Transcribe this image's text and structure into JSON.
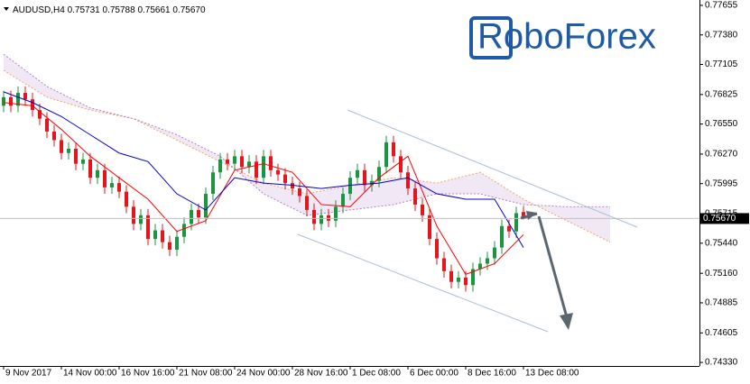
{
  "chart_data": {
    "type": "candlestick",
    "header": {
      "symbol": "AUDUSD,H4",
      "open": "0.75731",
      "high": "0.75788",
      "low": "0.75661",
      "close": "0.75670"
    },
    "logo": "RoboForex",
    "up_color": "#1a9641",
    "down_color": "#e8141c",
    "x": [
      0,
      2,
      4,
      6,
      8,
      10,
      12,
      14,
      16,
      18,
      20,
      22,
      24,
      26,
      28,
      30,
      32,
      34,
      36,
      38,
      40,
      42,
      44,
      46,
      48,
      50,
      52,
      54,
      56,
      58,
      60,
      62,
      64,
      66,
      68,
      70,
      72,
      74,
      76,
      78,
      80,
      82,
      84,
      86,
      88,
      90,
      92,
      94,
      96,
      98,
      100,
      102,
      104,
      106,
      108,
      110,
      112,
      114,
      116,
      118,
      120,
      122,
      124,
      126,
      128,
      130,
      132,
      134,
      136,
      138,
      140,
      142,
      144
    ],
    "open": [
      0.7672,
      0.768,
      0.7672,
      0.7684,
      0.7678,
      0.7668,
      0.766,
      0.7648,
      0.764,
      0.7628,
      0.7632,
      0.7618,
      0.7622,
      0.7605,
      0.7612,
      0.7596,
      0.76,
      0.7592,
      0.7578,
      0.7562,
      0.757,
      0.7548,
      0.7556,
      0.7545,
      0.7538,
      0.755,
      0.7562,
      0.7575,
      0.7568,
      0.759,
      0.761,
      0.7622,
      0.7618,
      0.7625,
      0.7615,
      0.762,
      0.7605,
      0.7625,
      0.7612,
      0.7608,
      0.76,
      0.7595,
      0.7588,
      0.7575,
      0.7562,
      0.757,
      0.7565,
      0.7578,
      0.759,
      0.7605,
      0.7612,
      0.7598,
      0.7602,
      0.7615,
      0.7638,
      0.7625,
      0.761,
      0.7595,
      0.758,
      0.757,
      0.7548,
      0.753,
      0.7518,
      0.7508,
      0.7512,
      0.7505,
      0.752,
      0.7525,
      0.753,
      0.754,
      0.756,
      0.7555,
      0.75731
    ],
    "high": [
      0.7686,
      0.7686,
      0.769,
      0.769,
      0.7684,
      0.7674,
      0.7666,
      0.7654,
      0.7646,
      0.7638,
      0.7638,
      0.7628,
      0.7628,
      0.7618,
      0.7618,
      0.7606,
      0.7606,
      0.7598,
      0.7584,
      0.7576,
      0.7576,
      0.7562,
      0.7562,
      0.7551,
      0.7556,
      0.7568,
      0.7581,
      0.7581,
      0.7596,
      0.7616,
      0.7628,
      0.7628,
      0.7631,
      0.7631,
      0.7626,
      0.7626,
      0.7631,
      0.7631,
      0.7618,
      0.7614,
      0.7606,
      0.7601,
      0.7594,
      0.7581,
      0.7576,
      0.7576,
      0.7584,
      0.7596,
      0.7611,
      0.7618,
      0.7618,
      0.7608,
      0.7621,
      0.7644,
      0.7644,
      0.7631,
      0.7616,
      0.7601,
      0.7586,
      0.7576,
      0.7554,
      0.7536,
      0.7524,
      0.7518,
      0.7518,
      0.7526,
      0.7531,
      0.7536,
      0.7546,
      0.7566,
      0.7566,
      0.7578,
      0.75788
    ],
    "low": [
      0.7666,
      0.7666,
      0.7666,
      0.7672,
      0.7662,
      0.7654,
      0.7642,
      0.7634,
      0.7622,
      0.7622,
      0.7612,
      0.7612,
      0.7599,
      0.7599,
      0.759,
      0.759,
      0.7586,
      0.7572,
      0.7556,
      0.7556,
      0.7542,
      0.7542,
      0.7539,
      0.7532,
      0.7532,
      0.7544,
      0.7556,
      0.7562,
      0.7562,
      0.7584,
      0.7604,
      0.7612,
      0.7612,
      0.7609,
      0.7609,
      0.7599,
      0.7599,
      0.7606,
      0.7602,
      0.7594,
      0.7589,
      0.7582,
      0.7569,
      0.7556,
      0.7556,
      0.7559,
      0.7559,
      0.7572,
      0.7584,
      0.7599,
      0.7592,
      0.7592,
      0.7596,
      0.7609,
      0.7619,
      0.7604,
      0.7589,
      0.7574,
      0.7564,
      0.7542,
      0.7524,
      0.7512,
      0.7502,
      0.7502,
      0.7499,
      0.7499,
      0.7514,
      0.7519,
      0.7524,
      0.7534,
      0.7549,
      0.7549,
      0.75661
    ],
    "close": [
      0.768,
      0.7672,
      0.7684,
      0.7678,
      0.7668,
      0.766,
      0.7648,
      0.764,
      0.7628,
      0.7632,
      0.7618,
      0.7622,
      0.7605,
      0.7612,
      0.7596,
      0.76,
      0.7592,
      0.7578,
      0.7562,
      0.757,
      0.7548,
      0.7556,
      0.7545,
      0.7538,
      0.755,
      0.7562,
      0.7575,
      0.7568,
      0.759,
      0.761,
      0.7622,
      0.7618,
      0.7625,
      0.7615,
      0.762,
      0.7605,
      0.7625,
      0.7612,
      0.7608,
      0.76,
      0.7595,
      0.7588,
      0.7575,
      0.7562,
      0.757,
      0.7565,
      0.7578,
      0.759,
      0.7605,
      0.7612,
      0.7598,
      0.7602,
      0.7615,
      0.7638,
      0.7625,
      0.761,
      0.7595,
      0.758,
      0.757,
      0.7548,
      0.753,
      0.7518,
      0.7508,
      0.7512,
      0.7505,
      0.752,
      0.7525,
      0.753,
      0.754,
      0.756,
      0.7555,
      0.7572,
      0.7567
    ],
    "lines": [
      {
        "color": "#ff0000",
        "x": [
          0,
          8,
          16,
          24,
          32,
          40,
          48,
          56,
          64,
          72,
          80,
          88,
          96,
          104,
          112,
          120,
          128,
          136,
          144
        ],
        "values": [
          0.7675,
          0.7672,
          0.765,
          0.7625,
          0.7605,
          0.7585,
          0.7555,
          0.7565,
          0.7612,
          0.7618,
          0.761,
          0.758,
          0.7578,
          0.7605,
          0.7625,
          0.756,
          0.7515,
          0.7525,
          0.7552
        ]
      },
      {
        "color": "#0000cc",
        "x": [
          0,
          8,
          16,
          24,
          32,
          40,
          48,
          56,
          64,
          72,
          80,
          88,
          96,
          104,
          112,
          120,
          128,
          136,
          144
        ],
        "values": [
          0.7685,
          0.7675,
          0.7662,
          0.7645,
          0.7628,
          0.762,
          0.759,
          0.7575,
          0.7605,
          0.76,
          0.7598,
          0.7595,
          0.7598,
          0.76,
          0.7605,
          0.759,
          0.7585,
          0.7585,
          0.754
        ]
      }
    ],
    "cloud": {
      "span_a": {
        "color": "#f4a460",
        "x": [
          0,
          12,
          24,
          36,
          48,
          60,
          72,
          84,
          96,
          108,
          120,
          132,
          144,
          156,
          168
        ],
        "values": [
          0.7705,
          0.768,
          0.7668,
          0.766,
          0.764,
          0.762,
          0.76,
          0.759,
          0.7598,
          0.7605,
          0.76,
          0.761,
          0.7585,
          0.7565,
          0.7545
        ]
      },
      "span_b": {
        "color": "#b080c8",
        "x": [
          0,
          12,
          24,
          36,
          48,
          60,
          72,
          84,
          96,
          108,
          120,
          132,
          144,
          156,
          168
        ],
        "values": [
          0.772,
          0.769,
          0.767,
          0.766,
          0.7645,
          0.7625,
          0.759,
          0.757,
          0.7575,
          0.758,
          0.759,
          0.759,
          0.758,
          0.7578,
          0.7578
        ]
      }
    },
    "last_price": {
      "value": 0.7567,
      "label": "0.75670"
    },
    "xlim": [
      -1,
      192.75
    ],
    "ylim": [
      0.74297,
      0.77705
    ],
    "yticks": [
      0.77655,
      {
        "value": 0.7738,
        "label": "0.77380"
      },
      0.77105,
      0.76825,
      {
        "value": 0.7655,
        "label": "0.76550"
      },
      {
        "value": 0.7627,
        "label": "0.76270"
      },
      0.75995,
      0.75715,
      {
        "value": 0.7544,
        "label": "0.75440"
      },
      {
        "value": 0.7516,
        "label": "0.75160"
      },
      0.74885,
      0.74605,
      {
        "value": 0.7433,
        "label": "0.74330"
      }
    ],
    "xticks": [
      {
        "value": 0,
        "label": "9 Nov 2017"
      },
      {
        "value": 16,
        "label": "14 Nov 00:00"
      },
      {
        "value": 32,
        "label": "16 Nov 16:00"
      },
      {
        "value": 48,
        "label": "21 Nov 08:00"
      },
      {
        "value": 64,
        "label": "24 Nov 00:00"
      },
      {
        "value": 80,
        "label": "28 Nov 16:00"
      },
      {
        "value": 96,
        "label": "1 Dec 08:00"
      },
      {
        "value": 112,
        "label": "6 Dec 00:00"
      },
      {
        "value": 128,
        "label": "8 Dec 16:00"
      },
      {
        "value": 144,
        "label": "13 Dec 08:00"
      }
    ]
  }
}
